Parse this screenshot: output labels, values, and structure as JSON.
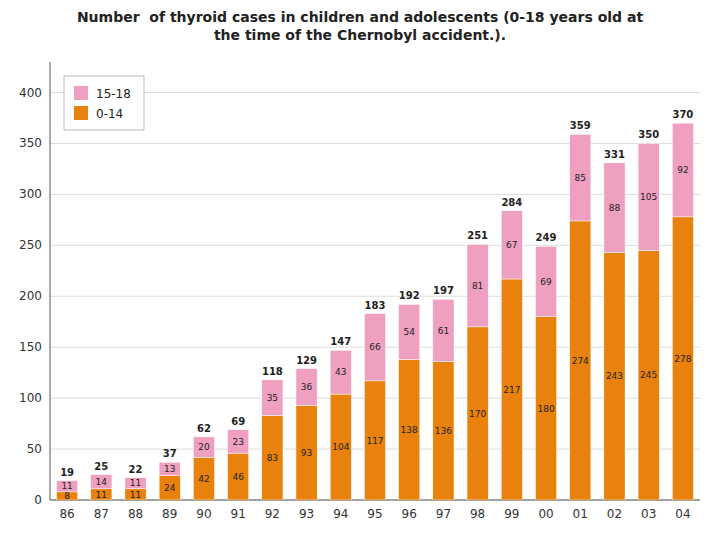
{
  "chart_data": {
    "type": "bar",
    "title": "Number  of thyroid cases in children and adolescents (0-18 years old at\nthe time of the Chernobyl accident.).",
    "categories": [
      "86",
      "87",
      "88",
      "89",
      "90",
      "91",
      "92",
      "93",
      "94",
      "95",
      "96",
      "97",
      "98",
      "99",
      "00",
      "01",
      "02",
      "03",
      "04"
    ],
    "series": [
      {
        "name": "0-14",
        "color": "#E8820C",
        "values": [
          8,
          11,
          11,
          24,
          42,
          46,
          83,
          93,
          104,
          117,
          138,
          136,
          170,
          217,
          180,
          274,
          243,
          245,
          278
        ]
      },
      {
        "name": "15-18",
        "color": "#EFA0C0",
        "values": [
          11,
          14,
          11,
          13,
          20,
          23,
          35,
          36,
          43,
          66,
          54,
          61,
          81,
          67,
          69,
          85,
          88,
          105,
          92
        ]
      }
    ],
    "totals": [
      19,
      25,
      22,
      37,
      62,
      69,
      118,
      129,
      147,
      183,
      192,
      197,
      251,
      284,
      249,
      359,
      331,
      350,
      370
    ],
    "ylim": [
      0,
      430
    ],
    "yticks": [
      0,
      50,
      100,
      150,
      200,
      250,
      300,
      350,
      400
    ],
    "stacked": true,
    "data_labels": true,
    "grid": true,
    "legend": "upper left"
  }
}
